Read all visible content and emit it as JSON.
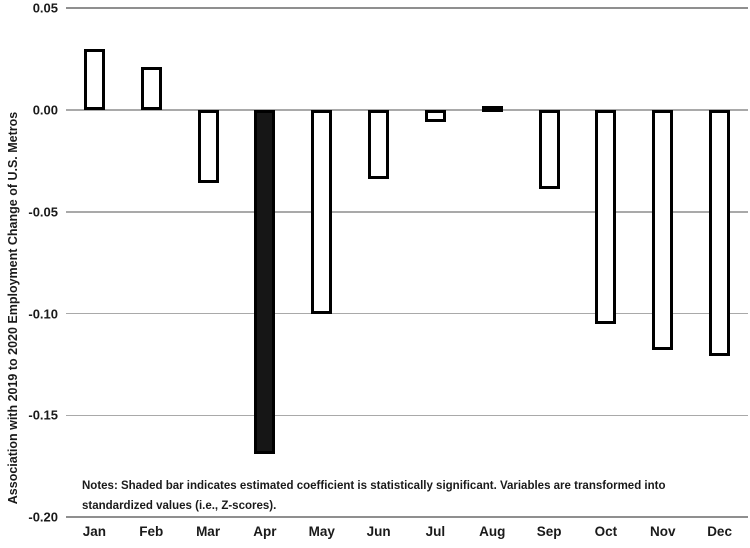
{
  "chart_data": {
    "type": "bar",
    "title": "",
    "xlabel": "",
    "ylabel": "Association with 2019 to 2020 Employment Change of U.S. Metros",
    "categories": [
      "Jan",
      "Feb",
      "Mar",
      "Apr",
      "May",
      "Jun",
      "Jul",
      "Aug",
      "Sep",
      "Oct",
      "Nov",
      "Dec"
    ],
    "values": [
      0.03,
      0.021,
      -0.036,
      -0.169,
      -0.1,
      -0.034,
      -0.006,
      0.002,
      -0.039,
      -0.105,
      -0.118,
      -0.121
    ],
    "significant": [
      false,
      false,
      false,
      true,
      false,
      false,
      false,
      false,
      false,
      false,
      false,
      false
    ],
    "y_ticks": [
      0.05,
      0.0,
      -0.05,
      -0.1,
      -0.15,
      -0.2
    ],
    "y_tick_labels": [
      "0.05",
      "0.00",
      "-0.05",
      "-0.10",
      "-0.15",
      "-0.20"
    ],
    "ylim": [
      -0.2,
      0.05
    ],
    "grid": true,
    "legend": "none",
    "colors": {
      "bar_fill_default": "#ffffff",
      "bar_fill_significant": "#161616",
      "bar_border": "#000000",
      "gridline": "#a9a9a9",
      "text": "#1a1a1a"
    }
  },
  "notes": {
    "line1": "Notes: Shaded bar indicates estimated coefficient is statistically significant. Variables are transformed into",
    "line2": "standardized values (i.e., Z-scores)."
  }
}
